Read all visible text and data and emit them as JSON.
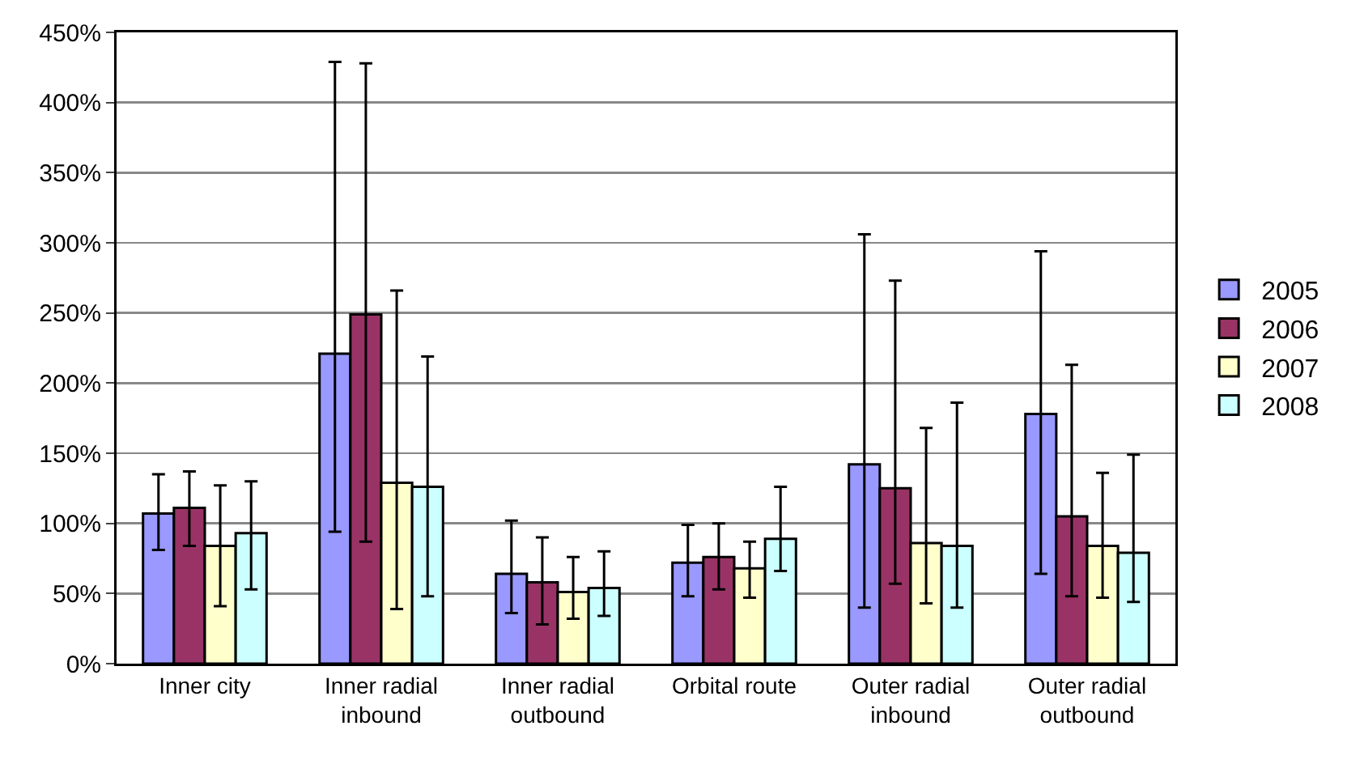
{
  "chart_data": {
    "type": "bar",
    "categories": [
      "Inner city",
      "Inner radial inbound",
      "Inner radial outbound",
      "Orbital route",
      "Outer radial inbound",
      "Outer radial outbound"
    ],
    "series": [
      {
        "name": "2005",
        "color": "#9999ff",
        "values": [
          107,
          221,
          64,
          72,
          142,
          178
        ],
        "errors": [
          [
            81,
            135
          ],
          [
            94,
            429
          ],
          [
            36,
            102
          ],
          [
            48,
            99
          ],
          [
            40,
            306
          ],
          [
            64,
            294
          ]
        ]
      },
      {
        "name": "2006",
        "color": "#993366",
        "values": [
          111,
          249,
          58,
          76,
          125,
          105
        ],
        "errors": [
          [
            84,
            137
          ],
          [
            87,
            428
          ],
          [
            28,
            90
          ],
          [
            53,
            100
          ],
          [
            57,
            273
          ],
          [
            48,
            213
          ]
        ]
      },
      {
        "name": "2007",
        "color": "#ffffcc",
        "values": [
          84,
          129,
          51,
          68,
          86,
          84
        ],
        "errors": [
          [
            41,
            127
          ],
          [
            39,
            266
          ],
          [
            32,
            76
          ],
          [
            47,
            87
          ],
          [
            43,
            168
          ],
          [
            47,
            136
          ]
        ]
      },
      {
        "name": "2008",
        "color": "#ccffff",
        "values": [
          93,
          126,
          54,
          89,
          84,
          79
        ],
        "errors": [
          [
            53,
            130
          ],
          [
            48,
            219
          ],
          [
            34,
            80
          ],
          [
            66,
            126
          ],
          [
            40,
            186
          ],
          [
            44,
            149
          ]
        ]
      }
    ],
    "ylim": [
      0,
      450
    ],
    "yticks": [
      {
        "value": 0,
        "label": "0%"
      },
      {
        "value": 50,
        "label": "50%"
      },
      {
        "value": 100,
        "label": "100%"
      },
      {
        "value": 150,
        "label": "150%"
      },
      {
        "value": 200,
        "label": "200%"
      },
      {
        "value": 250,
        "label": "250%"
      },
      {
        "value": 300,
        "label": "300%"
      },
      {
        "value": 350,
        "label": "350%"
      },
      {
        "value": 400,
        "label": "400%"
      },
      {
        "value": 450,
        "label": "450%"
      }
    ],
    "grid": "y",
    "legend": "right"
  }
}
